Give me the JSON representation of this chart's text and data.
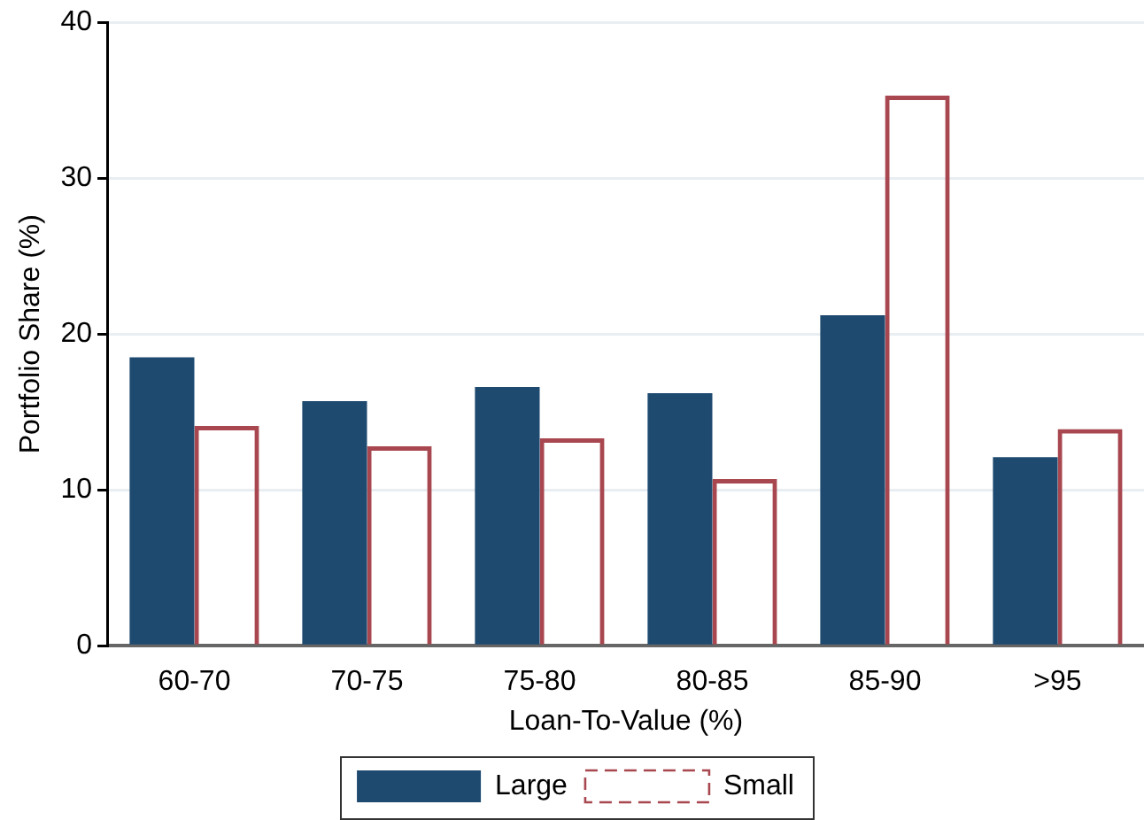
{
  "chart_data": {
    "type": "bar",
    "xlabel": "Loan-To-Value (%)",
    "ylabel": "Portfolio Share (%)",
    "categories": [
      "60-70",
      "70-75",
      "75-80",
      "80-85",
      "85-90",
      ">95"
    ],
    "series": [
      {
        "name": "Large",
        "color": "#1f4a70",
        "values": [
          18.5,
          15.7,
          16.6,
          16.2,
          21.2,
          12.1
        ]
      },
      {
        "name": "Small",
        "color": "#a8474f",
        "line_style": "dashed",
        "values": [
          14.1,
          12.8,
          13.3,
          10.7,
          35.3,
          13.9
        ]
      }
    ],
    "ylim": [
      0,
      40
    ],
    "yticks": [
      0,
      10,
      20,
      30,
      40
    ],
    "grid": "y",
    "legend": "bottom"
  }
}
